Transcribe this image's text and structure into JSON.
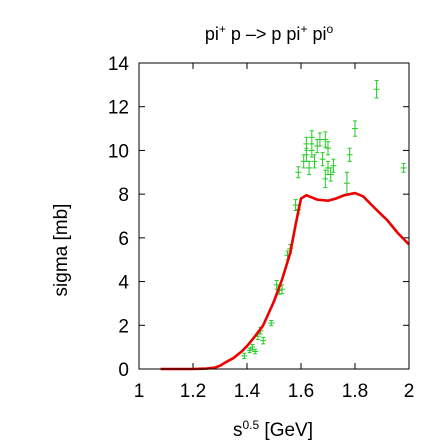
{
  "chart_data": {
    "type": "scatter",
    "title": {
      "parts": [
        {
          "text": "pi",
          "sup": false
        },
        {
          "text": "+",
          "sup": true
        },
        {
          "text": " p –> p pi",
          "sup": false
        },
        {
          "text": "+",
          "sup": true
        },
        {
          "text": " pi",
          "sup": false
        },
        {
          "text": "o",
          "sup": true
        }
      ]
    },
    "xlabel": {
      "parts": [
        {
          "text": "s",
          "sup": false
        },
        {
          "text": "0.5",
          "sup": true
        },
        {
          "text": " [GeV]",
          "sup": false
        }
      ]
    },
    "ylabel": "sigma [mb]",
    "xlim": [
      1,
      2
    ],
    "ylim": [
      0,
      14
    ],
    "xticks": [
      1,
      1.2,
      1.4,
      1.6,
      1.8,
      2
    ],
    "xtick_labels": [
      "1",
      "1.2",
      "1.4",
      "1.6",
      "1.8",
      "2"
    ],
    "yticks": [
      0,
      2,
      4,
      6,
      8,
      10,
      12,
      14
    ],
    "ytick_labels": [
      "0",
      "2",
      "4",
      "6",
      "8",
      "10",
      "12",
      "14"
    ],
    "grid": false,
    "colors": {
      "data_points": "#22cc22",
      "curve": "#ee0000",
      "axes": "#000000"
    },
    "series": [
      {
        "kind": "points_with_errorbars",
        "points": [
          {
            "x": 1.39,
            "y": 0.6,
            "err": 0.12
          },
          {
            "x": 1.41,
            "y": 0.85,
            "err": 0.1
          },
          {
            "x": 1.42,
            "y": 1.0,
            "err": 0.12
          },
          {
            "x": 1.43,
            "y": 0.8,
            "err": 0.1
          },
          {
            "x": 1.44,
            "y": 1.5,
            "err": 0.15
          },
          {
            "x": 1.45,
            "y": 1.75,
            "err": 0.15
          },
          {
            "x": 1.46,
            "y": 1.3,
            "err": 0.15
          },
          {
            "x": 1.49,
            "y": 2.1,
            "err": 0.12
          },
          {
            "x": 1.51,
            "y": 3.85,
            "err": 0.2
          },
          {
            "x": 1.52,
            "y": 3.6,
            "err": 0.18
          },
          {
            "x": 1.53,
            "y": 3.65,
            "err": 0.2
          },
          {
            "x": 1.55,
            "y": 5.2,
            "err": 0.2
          },
          {
            "x": 1.56,
            "y": 5.5,
            "err": 0.2
          },
          {
            "x": 1.58,
            "y": 7.5,
            "err": 0.25
          },
          {
            "x": 1.59,
            "y": 7.3,
            "err": 0.2
          },
          {
            "x": 1.59,
            "y": 9.0,
            "err": 0.25
          },
          {
            "x": 1.61,
            "y": 9.5,
            "err": 0.3
          },
          {
            "x": 1.62,
            "y": 10.3,
            "err": 0.3
          },
          {
            "x": 1.62,
            "y": 9.8,
            "err": 0.3
          },
          {
            "x": 1.63,
            "y": 9.2,
            "err": 0.3
          },
          {
            "x": 1.64,
            "y": 10.6,
            "err": 0.3
          },
          {
            "x": 1.64,
            "y": 10.0,
            "err": 0.3
          },
          {
            "x": 1.65,
            "y": 9.5,
            "err": 0.3
          },
          {
            "x": 1.66,
            "y": 10.2,
            "err": 0.3
          },
          {
            "x": 1.67,
            "y": 10.5,
            "err": 0.3
          },
          {
            "x": 1.68,
            "y": 9.6,
            "err": 0.3
          },
          {
            "x": 1.69,
            "y": 8.7,
            "err": 0.4
          },
          {
            "x": 1.69,
            "y": 10.5,
            "err": 0.35
          },
          {
            "x": 1.7,
            "y": 9.2,
            "err": 0.3
          },
          {
            "x": 1.7,
            "y": 10.1,
            "err": 0.3
          },
          {
            "x": 1.71,
            "y": 8.9,
            "err": 0.3
          },
          {
            "x": 1.72,
            "y": 9.3,
            "err": 0.3
          },
          {
            "x": 1.77,
            "y": 8.5,
            "err": 0.5
          },
          {
            "x": 1.78,
            "y": 9.8,
            "err": 0.3
          },
          {
            "x": 1.8,
            "y": 11.0,
            "err": 0.35
          },
          {
            "x": 1.88,
            "y": 12.8,
            "err": 0.4
          },
          {
            "x": 1.98,
            "y": 9.2,
            "err": 0.2
          }
        ]
      },
      {
        "kind": "line",
        "x": [
          1.08,
          1.2,
          1.25,
          1.28,
          1.3,
          1.32,
          1.35,
          1.38,
          1.4,
          1.43,
          1.46,
          1.5,
          1.53,
          1.56,
          1.58,
          1.6,
          1.62,
          1.63,
          1.66,
          1.7,
          1.73,
          1.76,
          1.8,
          1.83,
          1.87,
          1.92,
          1.96,
          2.0
        ],
        "y": [
          0,
          0,
          0.02,
          0.06,
          0.15,
          0.3,
          0.5,
          0.8,
          1.05,
          1.5,
          2.0,
          3.1,
          4.1,
          5.3,
          6.6,
          7.8,
          7.95,
          7.9,
          7.75,
          7.7,
          7.8,
          7.95,
          8.05,
          7.9,
          7.4,
          6.8,
          6.2,
          5.7
        ]
      }
    ]
  }
}
